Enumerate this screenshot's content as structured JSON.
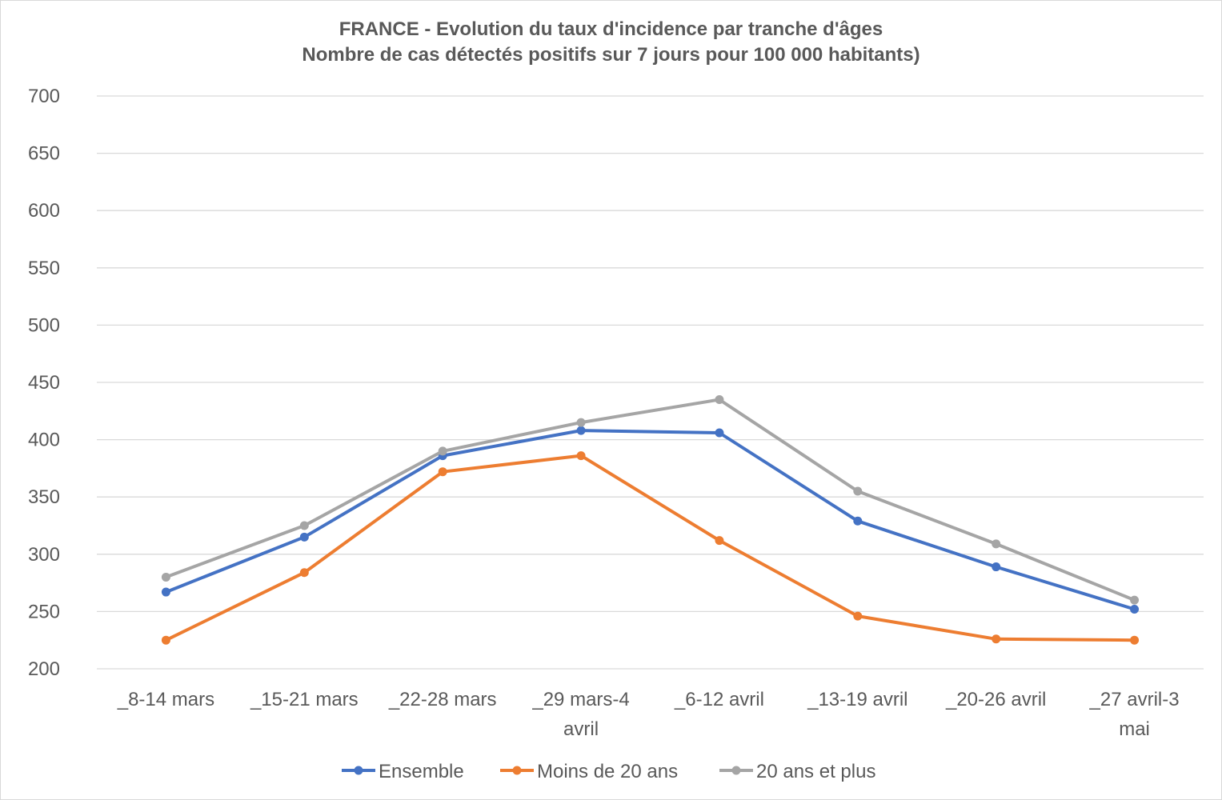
{
  "chart_data": {
    "type": "line",
    "title": "FRANCE - Evolution du taux d'incidence par tranche d'âges",
    "subtitle": "Nombre de cas détectés positifs sur 7 jours pour 100 000 habitants)",
    "categories": [
      [
        "_8-14 mars"
      ],
      [
        "_15-21 mars"
      ],
      [
        "_22-28 mars"
      ],
      [
        "_29 mars-4",
        "avril"
      ],
      [
        "_6-12 avril"
      ],
      [
        "_13-19 avril"
      ],
      [
        "_20-26 avril"
      ],
      [
        "_27 avril-3",
        "mai"
      ]
    ],
    "ylim": [
      200,
      700
    ],
    "yticks": [
      200,
      250,
      300,
      350,
      400,
      450,
      500,
      550,
      600,
      650,
      700
    ],
    "grid": true,
    "legend_position": "bottom",
    "series": [
      {
        "name": "Ensemble",
        "color": "#4472c4",
        "values": [
          267,
          315,
          386,
          408,
          406,
          329,
          289,
          252
        ]
      },
      {
        "name": "Moins de 20 ans",
        "color": "#ed7d31",
        "values": [
          225,
          284,
          372,
          386,
          312,
          246,
          226,
          225
        ]
      },
      {
        "name": "20 ans et plus",
        "color": "#a5a5a5",
        "values": [
          280,
          325,
          390,
          415,
          435,
          355,
          309,
          260
        ]
      }
    ]
  }
}
